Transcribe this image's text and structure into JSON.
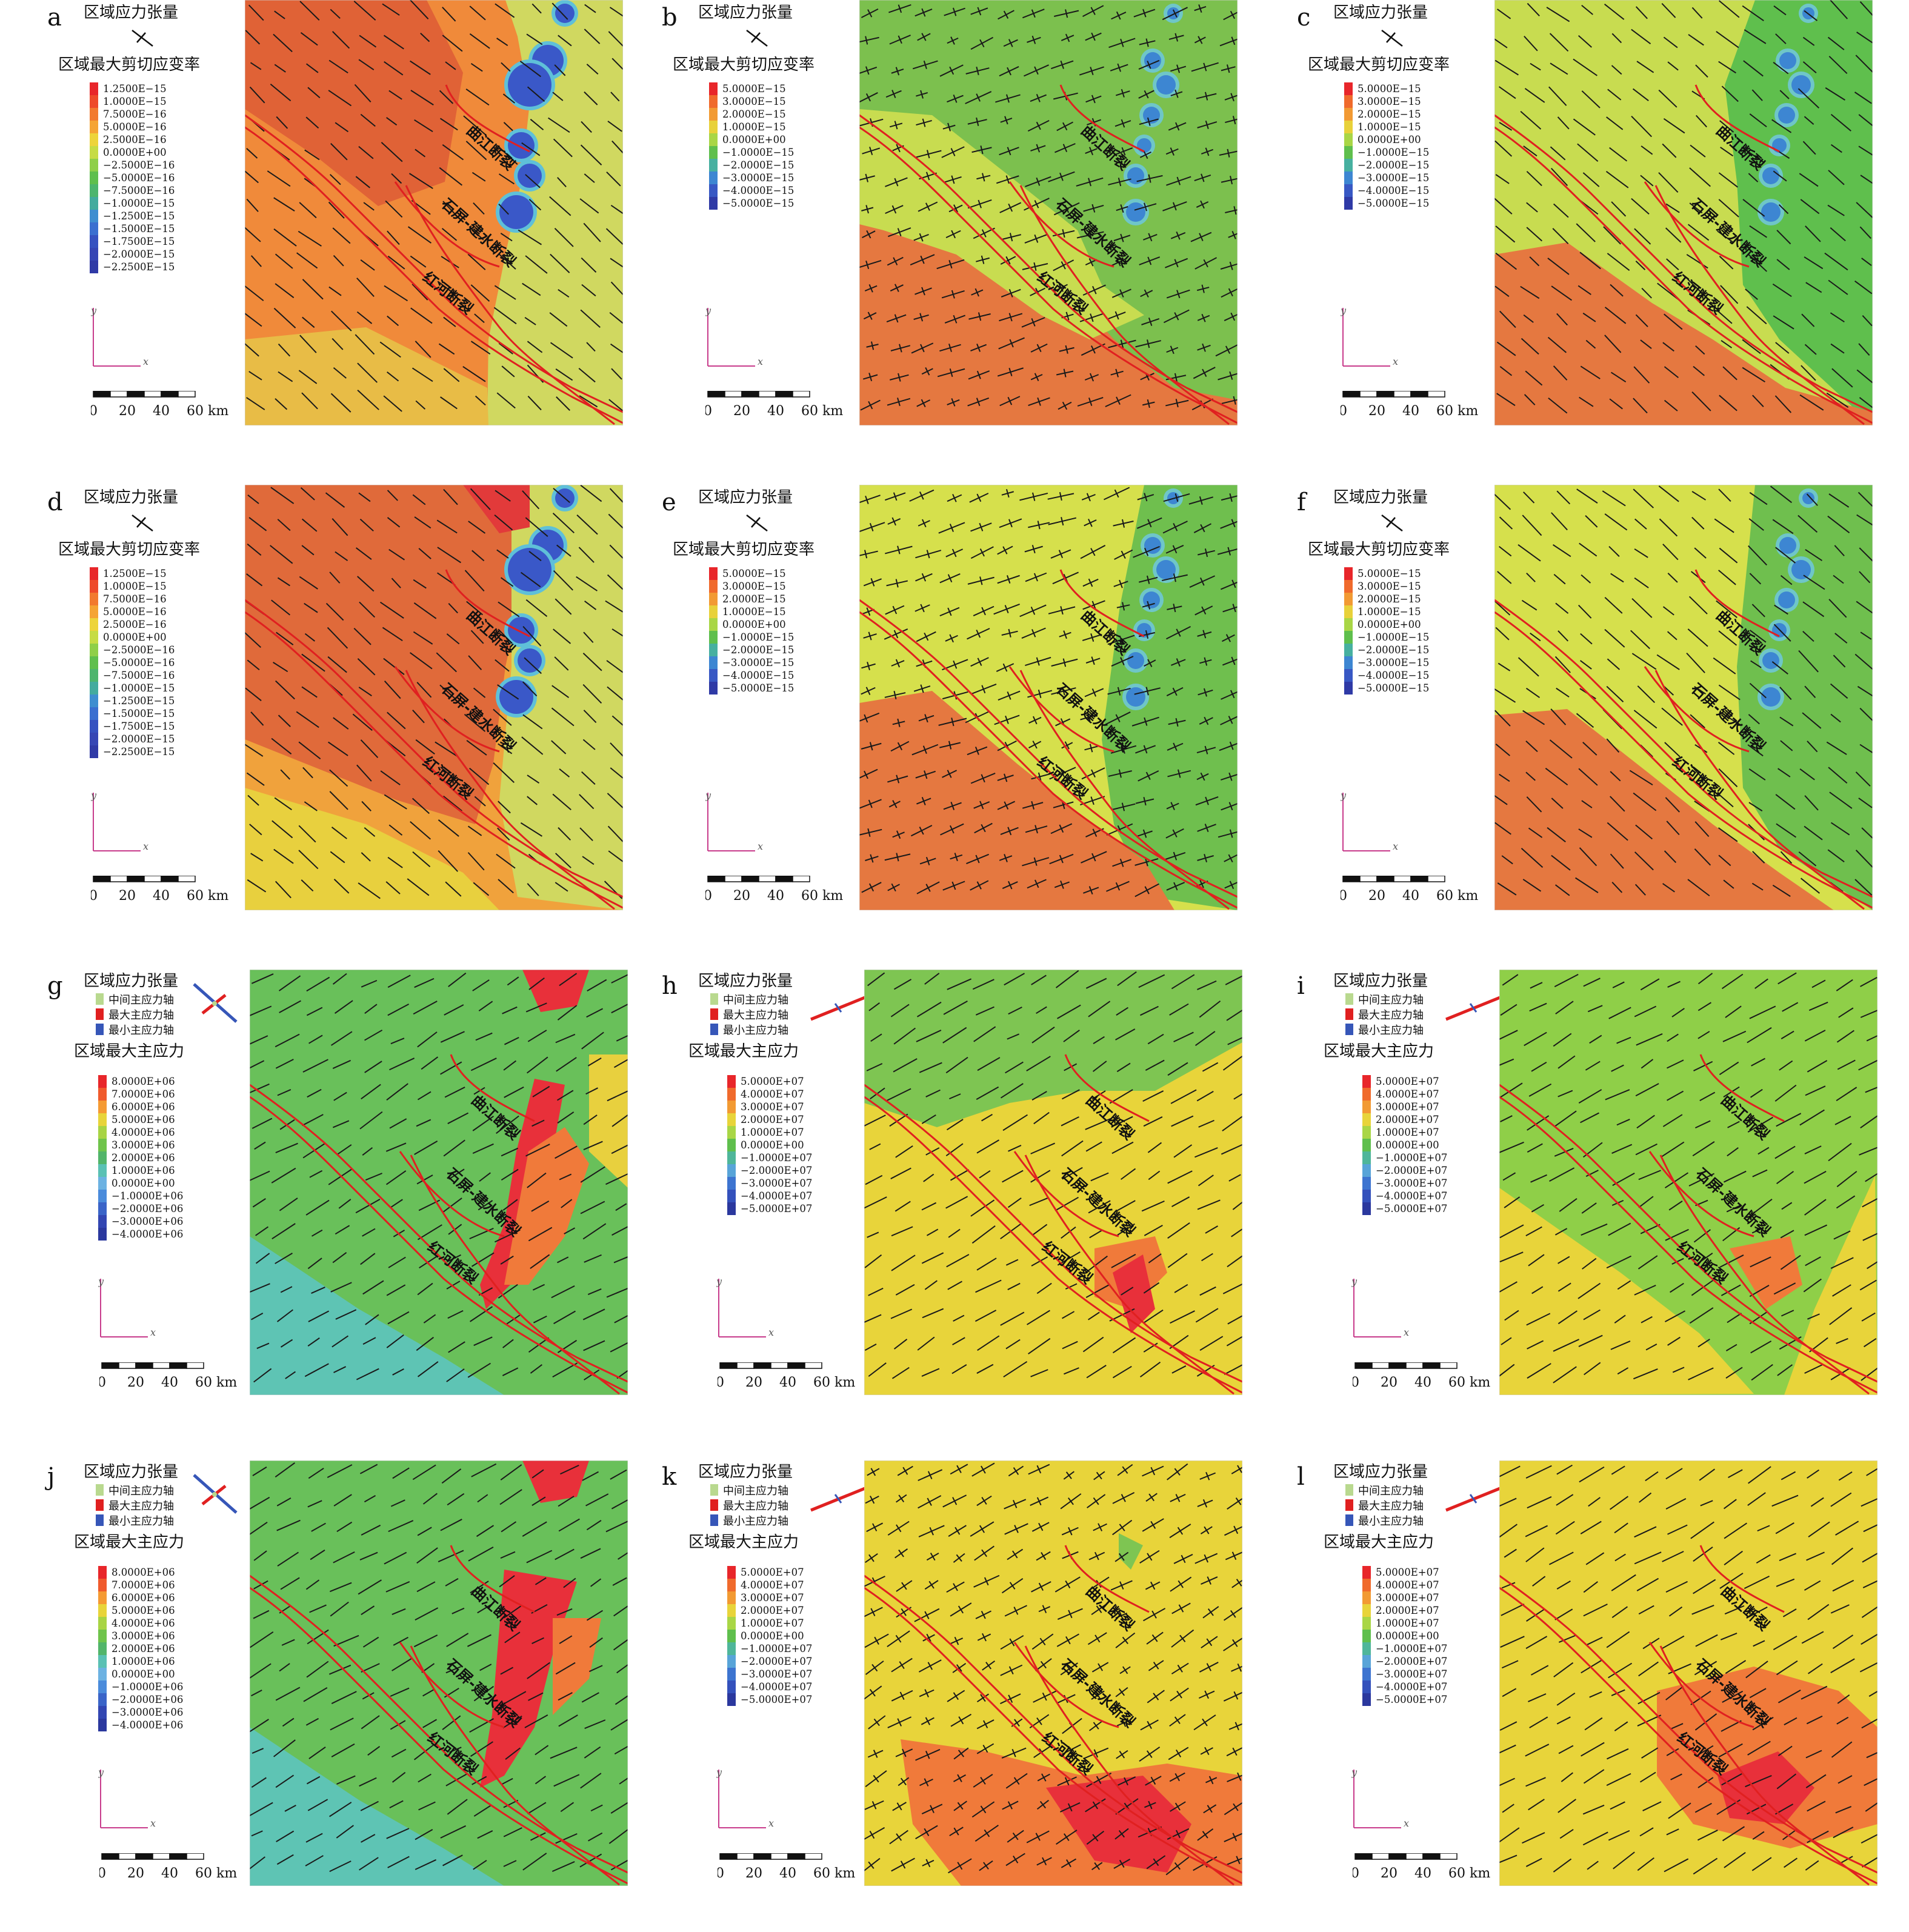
{
  "panels": [
    {
      "letter": "a",
      "tensor_title": "区域应力张量",
      "field_title": "区域最大剪切应变率",
      "legend": null,
      "colorbar": [
        "1.2500E−15",
        "1.0000E−15",
        "7.5000E−16",
        "5.0000E−16",
        "2.5000E−16",
        "0.0000E+00",
        "−2.5000E−16",
        "−5.0000E−16",
        "−7.5000E−16",
        "−1.0000E−15",
        "−1.2500E−15",
        "−1.5000E−15",
        "−1.7500E−15",
        "−2.0000E−15",
        "−2.2500E−15"
      ]
    },
    {
      "letter": "b",
      "tensor_title": "区域应力张量",
      "field_title": "区域最大剪切应变率",
      "legend": null,
      "colorbar": [
        "5.0000E−15",
        "3.0000E−15",
        "2.0000E−15",
        "1.0000E−15",
        "0.0000E+00",
        "−1.0000E−15",
        "−2.0000E−15",
        "−3.0000E−15",
        "−4.0000E−15",
        "−5.0000E−15"
      ]
    },
    {
      "letter": "c",
      "tensor_title": "区域应力张量",
      "field_title": "区域最大剪切应变率",
      "legend": null,
      "colorbar": [
        "5.0000E−15",
        "3.0000E−15",
        "2.0000E−15",
        "1.0000E−15",
        "0.0000E+00",
        "−1.0000E−15",
        "−2.0000E−15",
        "−3.0000E−15",
        "−4.0000E−15",
        "−5.0000E−15"
      ]
    },
    {
      "letter": "d",
      "tensor_title": "区域应力张量",
      "field_title": "区域最大剪切应变率",
      "legend": null,
      "colorbar": [
        "1.2500E−15",
        "1.0000E−15",
        "7.5000E−16",
        "5.0000E−16",
        "2.5000E−16",
        "0.0000E+00",
        "−2.5000E−16",
        "−5.0000E−16",
        "−7.5000E−16",
        "−1.0000E−15",
        "−1.2500E−15",
        "−1.5000E−15",
        "−1.7500E−15",
        "−2.0000E−15",
        "−2.2500E−15"
      ]
    },
    {
      "letter": "e",
      "tensor_title": "区域应力张量",
      "field_title": "区域最大剪切应变率",
      "legend": null,
      "colorbar": [
        "5.0000E−15",
        "3.0000E−15",
        "2.0000E−15",
        "1.0000E−15",
        "0.0000E+00",
        "−1.0000E−15",
        "−2.0000E−15",
        "−3.0000E−15",
        "−4.0000E−15",
        "−5.0000E−15"
      ]
    },
    {
      "letter": "f",
      "tensor_title": "区域应力张量",
      "field_title": "区域最大剪切应变率",
      "legend": null,
      "colorbar": [
        "5.0000E−15",
        "3.0000E−15",
        "2.0000E−15",
        "1.0000E−15",
        "0.0000E+00",
        "−1.0000E−15",
        "−2.0000E−15",
        "−3.0000E−15",
        "−4.0000E−15",
        "−5.0000E−15"
      ]
    },
    {
      "letter": "g",
      "tensor_title": "区域应力张量",
      "field_title": "区域最大主应力",
      "legend": [
        "中间主应力轴",
        "最大主应力轴",
        "最小主应力轴"
      ],
      "colorbar": [
        "8.0000E+06",
        "7.0000E+06",
        "6.0000E+06",
        "5.0000E+06",
        "4.0000E+06",
        "3.0000E+06",
        "2.0000E+06",
        "1.0000E+06",
        "0.0000E+00",
        "−1.0000E+06",
        "−2.0000E+06",
        "−3.0000E+06",
        "−4.0000E+06"
      ]
    },
    {
      "letter": "h",
      "tensor_title": "区域应力张量",
      "field_title": "区域最大主应力",
      "legend": [
        "中间主应力轴",
        "最大主应力轴",
        "最小主应力轴"
      ],
      "colorbar": [
        "5.0000E+07",
        "4.0000E+07",
        "3.0000E+07",
        "2.0000E+07",
        "1.0000E+07",
        "0.0000E+00",
        "−1.0000E+07",
        "−2.0000E+07",
        "−3.0000E+07",
        "−4.0000E+07",
        "−5.0000E+07"
      ]
    },
    {
      "letter": "i",
      "tensor_title": "区域应力张量",
      "field_title": "区域最大主应力",
      "legend": [
        "中间主应力轴",
        "最大主应力轴",
        "最小主应力轴"
      ],
      "colorbar": [
        "5.0000E+07",
        "4.0000E+07",
        "3.0000E+07",
        "2.0000E+07",
        "1.0000E+07",
        "0.0000E+00",
        "−1.0000E+07",
        "−2.0000E+07",
        "−3.0000E+07",
        "−4.0000E+07",
        "−5.0000E+07"
      ]
    },
    {
      "letter": "j",
      "tensor_title": "区域应力张量",
      "field_title": "区域最大主应力",
      "legend": [
        "中间主应力轴",
        "最大主应力轴",
        "最小主应力轴"
      ],
      "colorbar": [
        "8.0000E+06",
        "7.0000E+06",
        "6.0000E+06",
        "5.0000E+06",
        "4.0000E+06",
        "3.0000E+06",
        "2.0000E+06",
        "1.0000E+06",
        "0.0000E+00",
        "−1.0000E+06",
        "−2.0000E+06",
        "−3.0000E+06",
        "−4.0000E+06"
      ]
    },
    {
      "letter": "k",
      "tensor_title": "区域应力张量",
      "field_title": "区域最大主应力",
      "legend": [
        "中间主应力轴",
        "最大主应力轴",
        "最小主应力轴"
      ],
      "colorbar": [
        "5.0000E+07",
        "4.0000E+07",
        "3.0000E+07",
        "2.0000E+07",
        "1.0000E+07",
        "0.0000E+00",
        "−1.0000E+07",
        "−2.0000E+07",
        "−3.0000E+07",
        "−4.0000E+07",
        "−5.0000E+07"
      ]
    },
    {
      "letter": "l",
      "tensor_title": "区域应力张量",
      "field_title": "区域最大主应力",
      "legend": [
        "中间主应力轴",
        "最大主应力轴",
        "最小主应力轴"
      ],
      "colorbar": [
        "5.0000E+07",
        "4.0000E+07",
        "3.0000E+07",
        "2.0000E+07",
        "1.0000E+07",
        "0.0000E+00",
        "−1.0000E+07",
        "−2.0000E+07",
        "−3.0000E+07",
        "−4.0000E+07",
        "−5.0000E+07"
      ]
    }
  ],
  "fault_labels": [
    "曲江断裂",
    "石屏-建水断裂",
    "红河断裂"
  ],
  "axis_labels": {
    "x": "x",
    "y": "y"
  },
  "scale_bar": {
    "ticks": [
      "0",
      "20",
      "40",
      "60 km"
    ]
  },
  "colors": {
    "fault": "#e02020",
    "ramp_strain_fine": [
      "#e8262a",
      "#ee4a2a",
      "#f27a2f",
      "#f5a434",
      "#edd43a",
      "#c6dc44",
      "#8fcf48",
      "#5fbf4d",
      "#4db56e",
      "#43ab9e",
      "#3e8ed0",
      "#3a6fd0",
      "#3652c0",
      "#3646b4",
      "#2f3aa6"
    ],
    "ramp_strain": [
      "#e8262a",
      "#f06a2c",
      "#f29a33",
      "#e8d13a",
      "#a9d646",
      "#5fbf4d",
      "#47b0a0",
      "#3d86d2",
      "#3858c4",
      "#2f3aa6"
    ],
    "ramp_stress_fine": [
      "#e8262a",
      "#f05a2c",
      "#f59a33",
      "#e8d43a",
      "#a8d444",
      "#6fc44b",
      "#52b56a",
      "#5ac1b4",
      "#6cb2e2",
      "#4a8bdb",
      "#3a64c8",
      "#3246b2",
      "#2b389e"
    ],
    "ramp_stress": [
      "#e8262a",
      "#f06a2c",
      "#f29a33",
      "#e8d43a",
      "#a9d646",
      "#5fbf4d",
      "#4fb69a",
      "#58a4d8",
      "#3d74d0",
      "#3451bc",
      "#2b389e"
    ],
    "legend_axes": [
      "#b9d98f",
      "#e02020",
      "#3656b8"
    ]
  }
}
